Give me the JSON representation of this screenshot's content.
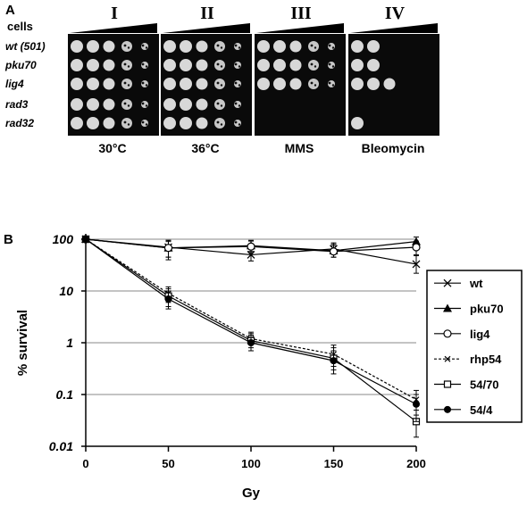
{
  "panel_a": {
    "label": "A",
    "cells_label": "cells",
    "panels": [
      {
        "roman": "I",
        "condition": "30°C",
        "growth": [
          5,
          5,
          5,
          5,
          5
        ]
      },
      {
        "roman": "II",
        "condition": "36°C",
        "growth": [
          5,
          5,
          5,
          5,
          5
        ]
      },
      {
        "roman": "III",
        "condition": "MMS",
        "growth": [
          5,
          5,
          5,
          0,
          0
        ]
      },
      {
        "roman": "IV",
        "condition": "Bleomycin",
        "growth": [
          2,
          2,
          3,
          0,
          1
        ]
      }
    ],
    "strains": [
      "wt (501)",
      "pku70",
      "lig4",
      "rad3",
      "rad32"
    ]
  },
  "panel_b": {
    "label": "B",
    "chart_data": {
      "type": "line",
      "xlabel": "Gy",
      "ylabel": "% survival",
      "x": [
        0,
        50,
        100,
        150,
        200
      ],
      "x_tick_labels": [
        "0",
        "50",
        "100",
        "150",
        "200"
      ],
      "y_tick_labels": [
        "0.01",
        "0.1",
        "1",
        "10",
        "100"
      ],
      "xlim": [
        0,
        200
      ],
      "ylim": [
        0.01,
        100
      ],
      "y_scale": "log",
      "grid": "horizontal",
      "legend_position": "right",
      "series": [
        {
          "name": "wt",
          "marker": "x",
          "dash": "solid",
          "values": [
            100,
            70,
            50,
            65,
            33
          ],
          "err_low": [
            100,
            45,
            38,
            45,
            22
          ],
          "err_high": [
            100,
            95,
            68,
            85,
            48
          ]
        },
        {
          "name": "pku70",
          "marker": "triangle",
          "dash": "solid",
          "values": [
            100,
            68,
            75,
            60,
            90
          ],
          "err_low": [
            100,
            40,
            58,
            45,
            70
          ],
          "err_high": [
            100,
            95,
            95,
            80,
            110
          ]
        },
        {
          "name": "lig4",
          "marker": "circle-open",
          "dash": "solid",
          "values": [
            100,
            68,
            72,
            58,
            70
          ],
          "err_low": [
            100,
            45,
            55,
            45,
            50
          ],
          "err_high": [
            100,
            90,
            92,
            75,
            92
          ]
        },
        {
          "name": "rhp54",
          "marker": "x-small",
          "dash": "dotted",
          "values": [
            100,
            9,
            1.2,
            0.6,
            0.08
          ],
          "err_low": [
            100,
            6,
            0.8,
            0.35,
            0.04
          ],
          "err_high": [
            100,
            12,
            1.6,
            0.9,
            0.12
          ]
        },
        {
          "name": "54/70",
          "marker": "square-open",
          "dash": "solid",
          "values": [
            100,
            8,
            1.1,
            0.5,
            0.03
          ],
          "err_low": [
            100,
            5,
            0.7,
            0.3,
            0.015
          ],
          "err_high": [
            100,
            11,
            1.5,
            0.8,
            0.05
          ]
        },
        {
          "name": "54/4",
          "marker": "circle-filled",
          "dash": "solid",
          "values": [
            100,
            7,
            1.0,
            0.45,
            0.065
          ],
          "err_low": [
            100,
            4.5,
            0.7,
            0.25,
            0.03
          ],
          "err_high": [
            100,
            10,
            1.4,
            0.7,
            0.1
          ]
        }
      ]
    }
  }
}
